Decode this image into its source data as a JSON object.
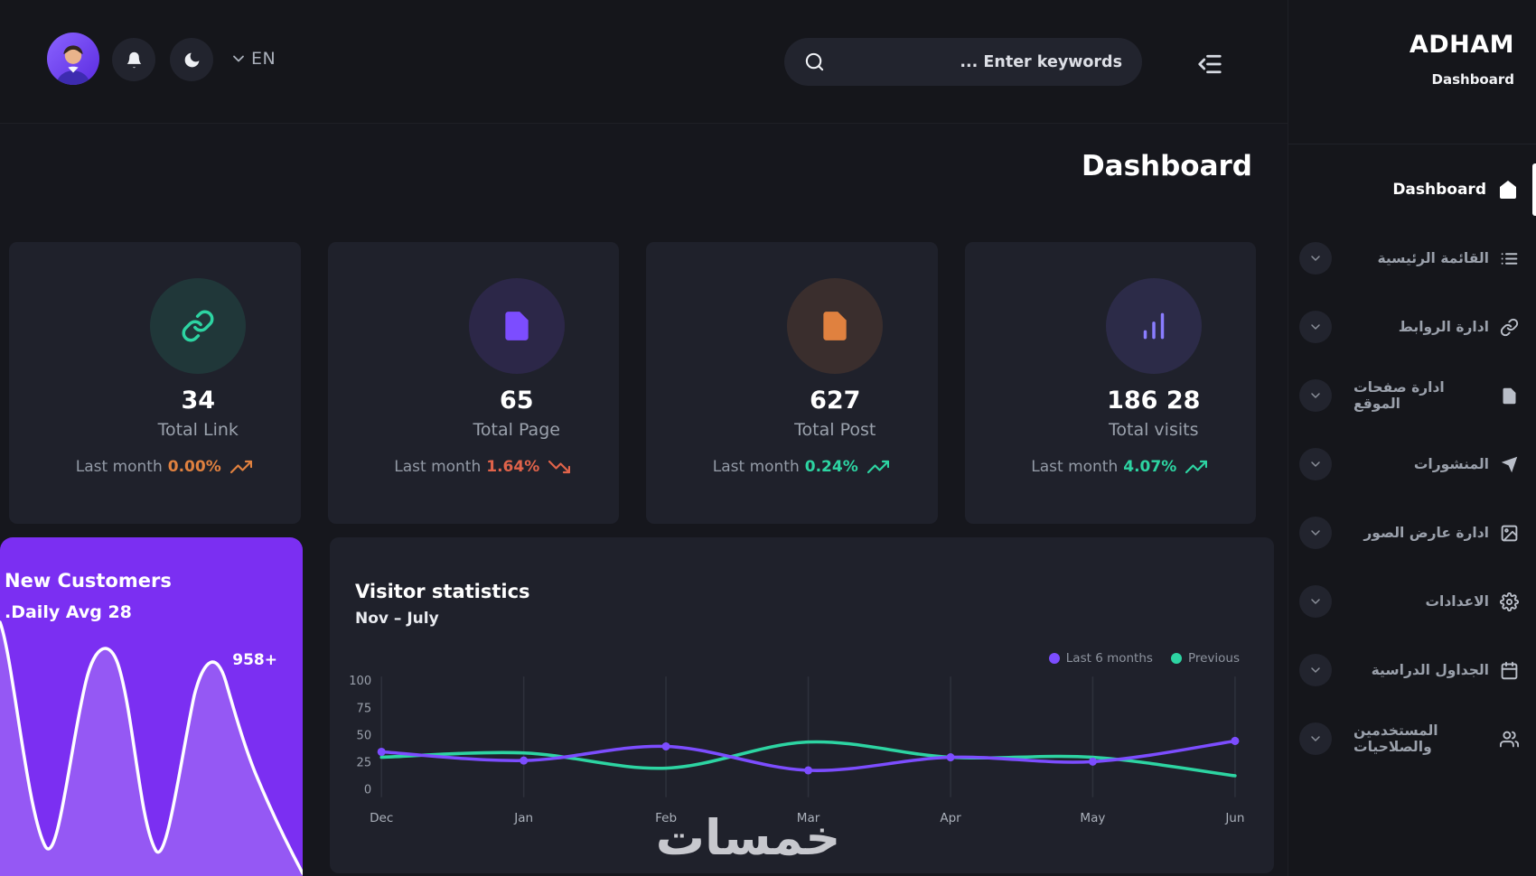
{
  "topbar": {
    "lang": "EN",
    "search_placeholder": "... Enter keywords"
  },
  "sidebar": {
    "brand": "ADHAM",
    "brand_sub": "Dashboard",
    "items": [
      {
        "label": "Dashboard",
        "icon": "home",
        "active": true
      },
      {
        "label": "القائمة الرئيسية",
        "icon": "list"
      },
      {
        "label": "ادارة الروابط",
        "icon": "link"
      },
      {
        "label": "ادارة صفحات الموقع",
        "icon": "file"
      },
      {
        "label": "المنشورات",
        "icon": "send"
      },
      {
        "label": "ادارة عارض الصور",
        "icon": "image"
      },
      {
        "label": "الاعدادات",
        "icon": "gear"
      },
      {
        "label": "الجداول الدراسية",
        "icon": "calendar"
      },
      {
        "label": "المستخدمين والصلاحيات",
        "icon": "users"
      }
    ]
  },
  "page": {
    "title": "Dashboard",
    "watermark": "خمسات"
  },
  "stats": {
    "cards": [
      {
        "value": "34",
        "label": "Total Link",
        "period": "Last month",
        "pct": "0.00%",
        "trend": "up",
        "pct_color": "#e0813f",
        "icon": "link",
        "icon_color": "#2dd4a2",
        "icon_bg": "rgba(45,212,162,0.12)"
      },
      {
        "value": "65",
        "label": "Total Page",
        "period": "Last month",
        "pct": "1.64%",
        "trend": "down",
        "pct_color": "#e0634a",
        "icon": "file",
        "icon_color": "#7c4dff",
        "icon_bg": "rgba(124,77,255,0.14)"
      },
      {
        "value": "627",
        "label": "Total Post",
        "period": "Last month",
        "pct": "0.24%",
        "trend": "up",
        "pct_color": "#2dd4a2",
        "icon": "file",
        "icon_color": "#e0813f",
        "icon_bg": "rgba(224,129,63,0.14)"
      },
      {
        "value": "186 28",
        "label": "Total visits",
        "period": "Last month",
        "pct": "4.07%",
        "trend": "up",
        "pct_color": "#2dd4a2",
        "icon": "bar-chart",
        "icon_color": "#8a7dff",
        "icon_bg": "rgba(124,108,255,0.14)"
      }
    ]
  },
  "new_customers": {
    "title": "New Customers",
    "subtitle": ".Daily Avg 28",
    "total": "958+",
    "accent": "#7b2ff2"
  },
  "chart_data": {
    "type": "line",
    "title": "Visitor statistics",
    "subtitle": "Nov – July",
    "x": [
      "Dec",
      "Jan",
      "Feb",
      "Mar",
      "Apr",
      "May",
      "Jun"
    ],
    "yticks": [
      0,
      25,
      50,
      75,
      100
    ],
    "ylim": [
      0,
      100
    ],
    "grid": "vertical",
    "legend_position": "top-right",
    "series": [
      {
        "name": "Last 6 months",
        "color": "#7c4dff",
        "values": [
          35,
          27,
          40,
          18,
          30,
          26,
          45
        ]
      },
      {
        "name": "Previous",
        "color": "#2dd4a2",
        "values": [
          30,
          34,
          20,
          44,
          30,
          30,
          13
        ]
      }
    ]
  }
}
